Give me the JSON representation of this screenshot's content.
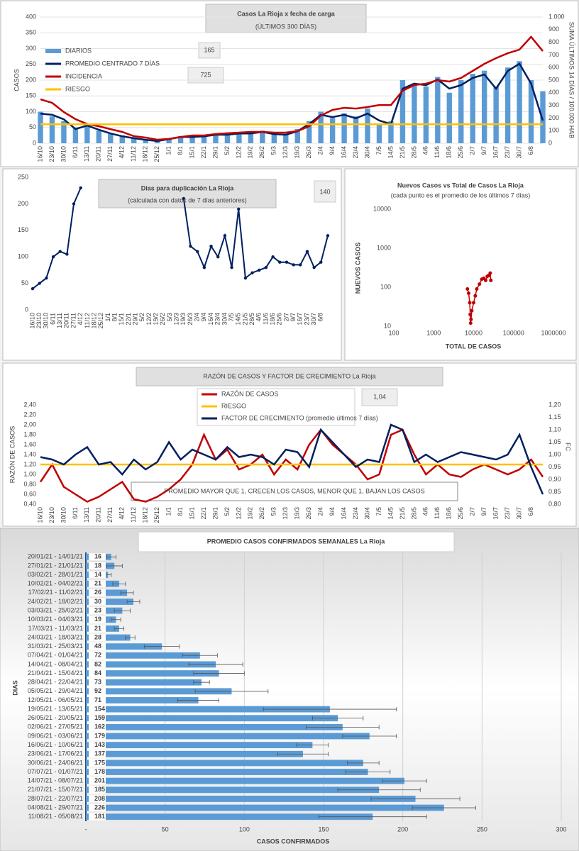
{
  "chart_data": [
    {
      "type": "combo",
      "title": "Casos La Rioja x fecha de carga",
      "subtitle": "(ÚLTIMOS 300 DÍAS)",
      "y_label": "CASOS",
      "y2_label": "SUMA ÚLTIMOS 14 DÍAS / 100.000 HAB",
      "annotations": [
        "165",
        "725"
      ],
      "categories": [
        "16/10",
        "23/10",
        "30/10",
        "6/11",
        "13/11",
        "20/11",
        "27/11",
        "4/12",
        "11/12",
        "18/12",
        "25/12",
        "1/1",
        "8/1",
        "15/1",
        "22/1",
        "29/1",
        "5/2",
        "12/2",
        "19/2",
        "26/2",
        "5/3",
        "12/3",
        "19/3",
        "26/3",
        "2/4",
        "9/4",
        "16/4",
        "23/4",
        "30/4",
        "7/5",
        "14/5",
        "21/5",
        "28/5",
        "4/6",
        "11/6",
        "18/6",
        "25/6",
        "2/7",
        "9/7",
        "16/7",
        "23/7",
        "30/7",
        "6/8",
        null
      ],
      "series": [
        {
          "name": "DIARIOS",
          "type": "bar",
          "color": "#5b9bd5",
          "values": [
            100,
            85,
            70,
            50,
            60,
            40,
            30,
            25,
            15,
            10,
            8,
            15,
            22,
            18,
            25,
            30,
            28,
            35,
            30,
            40,
            32,
            30,
            45,
            70,
            100,
            80,
            95,
            85,
            110,
            60,
            70,
            200,
            190,
            180,
            210,
            160,
            200,
            220,
            230,
            180,
            240,
            260,
            200,
            165
          ]
        },
        {
          "name": "PROMEDIO CENTRADO 7 DÍAS",
          "type": "line",
          "color": "#002060",
          "values": [
            94,
            90,
            76,
            45,
            56,
            43,
            31,
            22,
            16,
            11,
            7,
            13,
            20,
            20,
            22,
            27,
            27,
            31,
            31,
            36,
            29,
            27,
            38,
            61,
            90,
            83,
            90,
            79,
            94,
            72,
            61,
            173,
            189,
            184,
            202,
            173,
            184,
            207,
            218,
            173,
            229,
            252,
            189,
            72
          ]
        },
        {
          "name": "INCIDENCIA",
          "type": "line",
          "color": "#c00000",
          "axis": "y2",
          "values": [
            348,
            320,
            247,
            191,
            152,
            135,
            112,
            90,
            56,
            45,
            28,
            34,
            50,
            62,
            62,
            73,
            79,
            84,
            90,
            90,
            84,
            84,
            96,
            135,
            219,
            264,
            281,
            275,
            287,
            303,
            303,
            416,
            461,
            472,
            500,
            489,
            517,
            573,
            629,
            674,
            713,
            742,
            843,
            730
          ]
        },
        {
          "name": "RIESGO",
          "type": "hline",
          "color": "#ffc000",
          "axis": "y2",
          "value": 150
        }
      ],
      "ylim": [
        0,
        400
      ],
      "yticks": [
        0,
        50,
        100,
        150,
        200,
        250,
        300,
        350,
        400
      ],
      "y2lim": [
        0,
        1000
      ],
      "y2ticks": [
        0,
        100,
        200,
        300,
        400,
        500,
        600,
        700,
        800,
        900,
        {
          "value": 1000,
          "label": "1.000"
        }
      ],
      "grid": true
    },
    {
      "type": "line",
      "title": "Dias para duplicación La Rioja",
      "subtitle": "(calculada con datos de 7 días anteriores)",
      "annotations": [
        "140"
      ],
      "color": "#002060",
      "categories": [
        "16/10",
        "23/10",
        "30/10",
        "6/11",
        "13/11",
        "20/11",
        "27/11",
        "4/12",
        "11/12",
        "18/12",
        "25/12",
        "1/1",
        "8/1",
        "15/1",
        "22/1",
        "29/1",
        "5/2",
        "12/2",
        "19/2",
        "26/2",
        "5/3",
        "12/3",
        "19/3",
        "26/3",
        "2/4",
        "9/4",
        "16/4",
        "23/4",
        "30/4",
        "7/5",
        "14/5",
        "21/5",
        "28/5",
        "4/6",
        "11/6",
        "18/6",
        "25/6",
        "2/7",
        "9/7",
        "16/7",
        "23/7",
        "30/7",
        "6/8",
        null
      ],
      "values": [
        40,
        50,
        60,
        100,
        110,
        105,
        200,
        230,
        null,
        null,
        null,
        null,
        null,
        null,
        null,
        null,
        null,
        null,
        null,
        null,
        null,
        null,
        210,
        120,
        110,
        80,
        120,
        100,
        140,
        80,
        190,
        60,
        70,
        75,
        80,
        100,
        90,
        90,
        85,
        85,
        110,
        80,
        90,
        140
      ],
      "ylim": [
        0,
        250
      ],
      "yticks": [
        0,
        50,
        100,
        150,
        200,
        250
      ]
    },
    {
      "type": "scatter",
      "title": "Nuevos Casos vs Total de Casos La Rioja",
      "subtitle": "(cada punto es el promedio de los últimos 7 días)",
      "x_label": "TOTAL DE CASOS",
      "y_label": "NUEVOS CASOS",
      "color": "#c00000",
      "log_scale": true,
      "x": [
        7000,
        7500,
        8000,
        8200,
        8400,
        8600,
        9000,
        10000,
        11000,
        12000,
        14000,
        16000,
        18000,
        20000,
        22000,
        24000,
        26000,
        27000
      ],
      "values": [
        90,
        70,
        40,
        20,
        12,
        15,
        25,
        40,
        60,
        90,
        120,
        160,
        170,
        150,
        190,
        200,
        230,
        150
      ],
      "xlim": [
        100,
        1000000
      ],
      "xticks": [
        100,
        1000,
        10000,
        100000,
        1000000
      ],
      "ylim": [
        10,
        10000
      ],
      "yticks": [
        10,
        100,
        1000,
        10000
      ]
    },
    {
      "type": "line",
      "title": "RAZÓN DE CASOS Y FACTOR DE CRECIMIENTO La Rioja",
      "y_label": "RAZÓN DE CASOS",
      "y2_label": "FC",
      "annotations": [
        "1,04",
        "PROMEDIO MAYOR QUE 1, CRECEN LOS CASOS, MENOR QUE 1, BAJAN LOS CASOS"
      ],
      "categories": [
        "16/10",
        "23/10",
        "30/10",
        "6/11",
        "13/11",
        "20/11",
        "27/11",
        "4/12",
        "11/12",
        "18/12",
        "25/12",
        "1/1",
        "8/1",
        "15/1",
        "22/1",
        "29/1",
        "5/2",
        "12/2",
        "19/2",
        "26/2",
        "5/3",
        "12/3",
        "19/3",
        "26/3",
        "2/4",
        "9/4",
        "16/4",
        "23/4",
        "30/4",
        "7/5",
        "14/5",
        "21/5",
        "28/5",
        "4/6",
        "11/6",
        "18/6",
        "25/6",
        "2/7",
        "9/7",
        "16/7",
        "23/7",
        "30/7",
        "6/8",
        null
      ],
      "series": [
        {
          "name": "RAZÓN DE CASOS",
          "type": "line",
          "color": "#c00000",
          "values": [
            0.85,
            1.2,
            0.75,
            0.6,
            0.45,
            0.55,
            0.7,
            0.85,
            0.5,
            0.45,
            0.55,
            0.7,
            0.9,
            1.2,
            1.8,
            1.3,
            1.5,
            1.1,
            1.2,
            1.4,
            1.0,
            1.3,
            1.1,
            1.6,
            1.9,
            1.6,
            1.4,
            1.2,
            0.9,
            1.0,
            1.8,
            1.9,
            1.4,
            1.0,
            1.2,
            1.0,
            0.95,
            1.1,
            1.2,
            1.1,
            1.0,
            1.1,
            1.3,
            0.95
          ]
        },
        {
          "name": "RIESGO",
          "type": "hline",
          "color": "#ffc000",
          "value": 1.2
        },
        {
          "name": "FACTOR DE CRECIMIENTO (promedio últimos 7 días)",
          "type": "line",
          "color": "#002060",
          "axis": "y2",
          "values": [
            0.99,
            0.98,
            0.96,
            1.0,
            1.03,
            0.96,
            0.97,
            0.92,
            0.98,
            0.94,
            0.97,
            1.05,
            0.98,
            1.02,
            1.0,
            0.98,
            1.03,
            0.99,
            1.0,
            0.99,
            0.96,
            1.02,
            1.01,
            0.95,
            1.1,
            1.05,
            1.0,
            0.95,
            0.98,
            0.97,
            1.12,
            1.1,
            0.97,
            1.0,
            0.97,
            0.99,
            1.01,
            1.0,
            0.99,
            0.98,
            1.0,
            1.08,
            0.95,
            0.84
          ]
        }
      ],
      "ylim": [
        0.4,
        2.4
      ],
      "yticks": [
        {
          "value": 0.4,
          "label": "0,40"
        },
        {
          "value": 0.6,
          "label": "0,60"
        },
        {
          "value": 0.8,
          "label": "0,80"
        },
        {
          "value": 1.0,
          "label": "1,00"
        },
        {
          "value": 1.2,
          "label": "1,20"
        },
        {
          "value": 1.4,
          "label": "1,40"
        },
        {
          "value": 1.6,
          "label": "1,60"
        },
        {
          "value": 1.8,
          "label": "1,80"
        },
        {
          "value": 2.0,
          "label": "2,00"
        },
        {
          "value": 2.2,
          "label": "2,20"
        },
        {
          "value": 2.4,
          "label": "2,40"
        }
      ],
      "y2lim": [
        0.8,
        1.2
      ],
      "y2ticks": [
        {
          "value": 0.8,
          "label": "0,80"
        },
        {
          "value": 0.85,
          "label": "0,85"
        },
        {
          "value": 0.9,
          "label": "0,90"
        },
        {
          "value": 0.95,
          "label": "0,95"
        },
        {
          "value": 1.0,
          "label": "1,00"
        },
        {
          "value": 1.05,
          "label": "1,05"
        },
        {
          "value": 1.1,
          "label": "1,10"
        },
        {
          "value": 1.15,
          "label": "1,15"
        },
        {
          "value": 1.2,
          "label": "1,20"
        }
      ]
    },
    {
      "type": "barh",
      "title": "PROMEDIO CASOS CONFIRMADOS SEMANALES La Rioja",
      "x_label": "CASOS CONFIRMADOS",
      "y_label": "DIAS",
      "color": "#5b9bd5",
      "categories": [
        "20/01/21 - 14/01/21",
        "27/01/21 - 21/01/21",
        "03/02/21 - 28/01/21",
        "10/02/21 - 04/02/21",
        "17/02/21 - 11/02/21",
        "24/02/21 - 18/02/21",
        "03/03/21 - 25/02/21",
        "10/03/21 - 04/03/21",
        "17/03/21 - 11/03/21",
        "24/03/21 - 18/03/21",
        "31/03/21 - 25/03/21",
        "07/04/21 - 01/04/21",
        "14/04/21 - 08/04/21",
        "21/04/21 - 15/04/21",
        "28/04/21 - 22/04/21",
        "05/05/21 - 29/04/21",
        "12/05/21 - 06/05/21",
        "19/05/21 - 13/05/21",
        "26/05/21 - 20/05/21",
        "02/06/21 - 27/05/21",
        "09/06/21 - 03/06/21",
        "16/06/21 - 10/06/21",
        "23/06/21 - 17/06/21",
        "30/06/21 - 24/06/21",
        "07/07/21 - 01/07/21",
        "14/07/21 - 08/07/21",
        "21/07/21 - 15/07/21",
        "28/07/21 - 22/07/21",
        "04/08/21 - 29/07/21",
        "11/08/21 - 05/08/21"
      ],
      "values": [
        16,
        18,
        14,
        21,
        26,
        30,
        23,
        19,
        21,
        28,
        48,
        72,
        82,
        84,
        73,
        92,
        71,
        154,
        159,
        162,
        179,
        143,
        137,
        175,
        178,
        201,
        185,
        208,
        226,
        181
      ],
      "errors": [
        3,
        5,
        2,
        4,
        4,
        4,
        5,
        3,
        3,
        3,
        11,
        11,
        17,
        16,
        5,
        23,
        13,
        42,
        16,
        23,
        17,
        10,
        16,
        10,
        14,
        14,
        26,
        28,
        20,
        34
      ],
      "xlim": [
        0,
        300
      ],
      "xticks": [
        {
          "value": 0,
          "label": "-"
        },
        50,
        100,
        150,
        200,
        250,
        300
      ],
      "grid": true
    }
  ]
}
